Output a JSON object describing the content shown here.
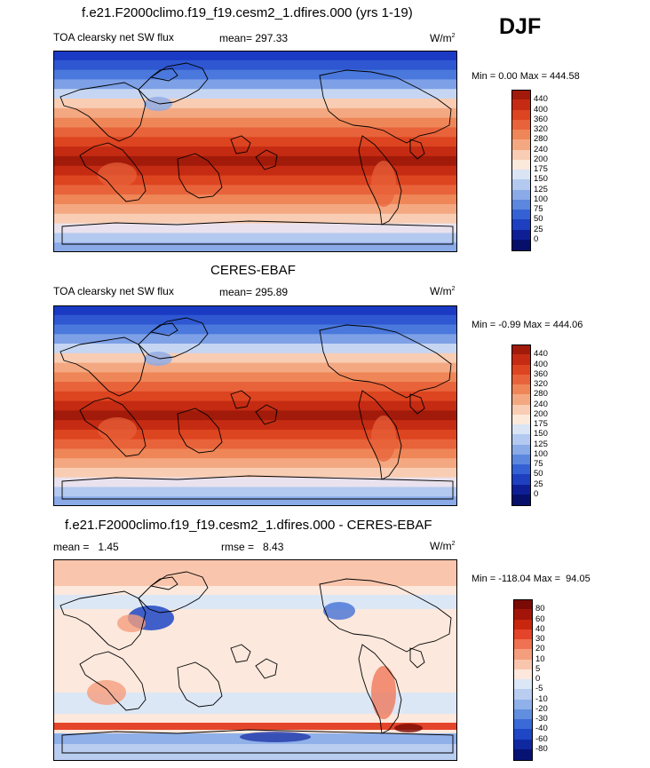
{
  "season": "DJF",
  "panels": [
    {
      "title": "f.e21.F2000climo.f19_f19.cesm2_1.dfires.000 (yrs 1-19)",
      "left_label": "TOA clearsky net SW flux",
      "center_label": "mean= 297.33",
      "units": "W/m",
      "units_sup": "2",
      "minmax": "Min =   0.00 Max = 444.58",
      "colorbar": {
        "labels": [
          "440",
          "400",
          "360",
          "320",
          "280",
          "240",
          "200",
          "175",
          "150",
          "125",
          "100",
          "75",
          "50",
          "25",
          "0"
        ],
        "colors": [
          "#a11a0a",
          "#c42b12",
          "#dd4420",
          "#e8633a",
          "#ef8658",
          "#f4a882",
          "#f8cdb3",
          "#fbe9dc",
          "#d9e4f5",
          "#b3c9ef",
          "#8aaae8",
          "#5b87de",
          "#3462d4",
          "#1e3fc0",
          "#0e1f96",
          "#06106a"
        ]
      }
    },
    {
      "title": "CERES-EBAF",
      "left_label": "TOA clearsky net SW flux",
      "center_label": "mean= 295.89",
      "units": "W/m",
      "units_sup": "2",
      "minmax": "Min =  -0.99 Max = 444.06",
      "colorbar": {
        "labels": [
          "440",
          "400",
          "360",
          "320",
          "280",
          "240",
          "200",
          "175",
          "150",
          "125",
          "100",
          "75",
          "50",
          "25",
          "0"
        ],
        "colors": [
          "#a11a0a",
          "#c42b12",
          "#dd4420",
          "#e8633a",
          "#ef8658",
          "#f4a882",
          "#f8cdb3",
          "#fbe9dc",
          "#d9e4f5",
          "#b3c9ef",
          "#8aaae8",
          "#5b87de",
          "#3462d4",
          "#1e3fc0",
          "#0e1f96",
          "#06106a"
        ]
      }
    },
    {
      "title": "f.e21.F2000climo.f19_f19.cesm2_1.dfires.000 - CERES-EBAF",
      "left_label": "mean =   1.45",
      "center_label": "rmse =   8.43",
      "units": "W/m",
      "units_sup": "2",
      "minmax": "Min = -118.04 Max =  94.05",
      "colorbar": {
        "labels": [
          "80",
          "60",
          "40",
          "30",
          "20",
          "10",
          "5",
          "0",
          "-5",
          "-10",
          "-20",
          "-30",
          "-40",
          "-60",
          "-80"
        ],
        "colors": [
          "#7a0a05",
          "#a31509",
          "#c8260f",
          "#e4452a",
          "#ef7252",
          "#f59e7e",
          "#f9c6ad",
          "#fce8dc",
          "#dce7f6",
          "#b8cdf0",
          "#8fb0e9",
          "#628ee0",
          "#3a6ad6",
          "#1f46c4",
          "#0f28a0",
          "#061372"
        ]
      }
    }
  ]
}
